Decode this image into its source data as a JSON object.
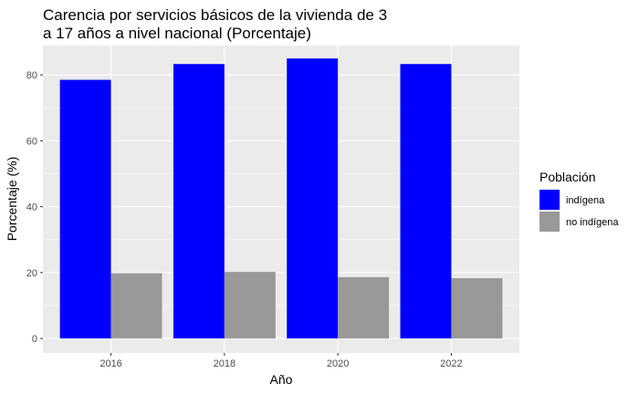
{
  "chart_data": {
    "type": "bar",
    "title_lines": [
      "Carencia por servicios básicos de la vivienda de 3",
      "a 17 años a nivel nacional (Porcentaje)"
    ],
    "xlabel": "Año",
    "ylabel": "Porcentaje (%)",
    "categories": [
      "2016",
      "2018",
      "2020",
      "2022"
    ],
    "ylim": [
      -4.4,
      88.9
    ],
    "yticks": [
      0,
      20,
      40,
      60,
      80
    ],
    "grid": true,
    "legend_position": "right",
    "legend_title": "Población",
    "series": [
      {
        "name": "indígena",
        "color": "#0000ff",
        "values": [
          78.5,
          83.3,
          85.0,
          83.3
        ]
      },
      {
        "name": "no indígena",
        "color": "#999999",
        "values": [
          19.8,
          20.2,
          18.6,
          18.3
        ]
      }
    ]
  }
}
